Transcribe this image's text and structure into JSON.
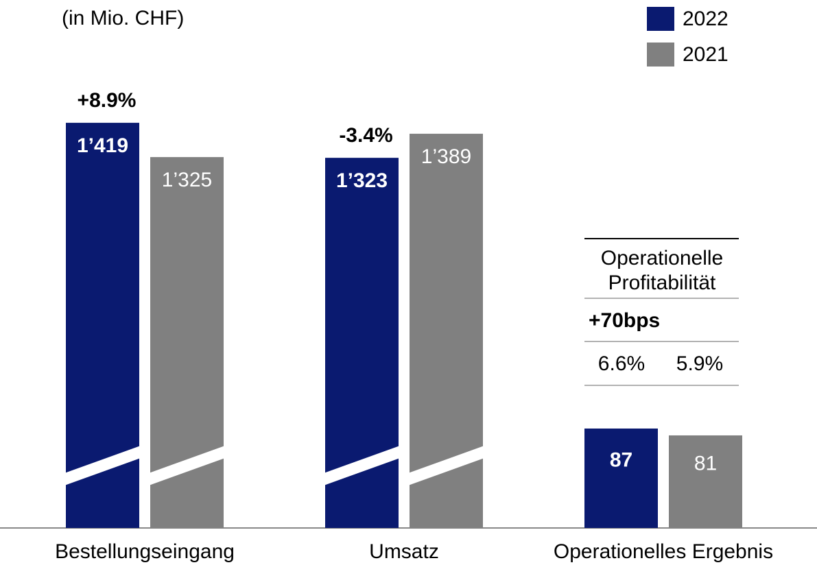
{
  "chart_data": {
    "type": "bar",
    "subtitle": "(in Mio. CHF)",
    "categories": [
      "Bestellungseingang",
      "Umsatz",
      "Operationelles Ergebnis"
    ],
    "series": [
      {
        "name": "2022",
        "color": "#0a1a70",
        "values": [
          1419,
          1323,
          87
        ],
        "value_labels": [
          "1’419",
          "1’323",
          "87"
        ]
      },
      {
        "name": "2021",
        "color": "#808080",
        "values": [
          1325,
          1389,
          81
        ],
        "value_labels": [
          "1’325",
          "1’389",
          "81"
        ]
      }
    ],
    "annotations": [
      "+8.9%",
      "-3.4%"
    ],
    "inset": {
      "title": [
        "Operationelle",
        "Profitabilität"
      ],
      "change": "+70bps",
      "values": [
        "6.6%",
        "5.9%"
      ]
    }
  }
}
